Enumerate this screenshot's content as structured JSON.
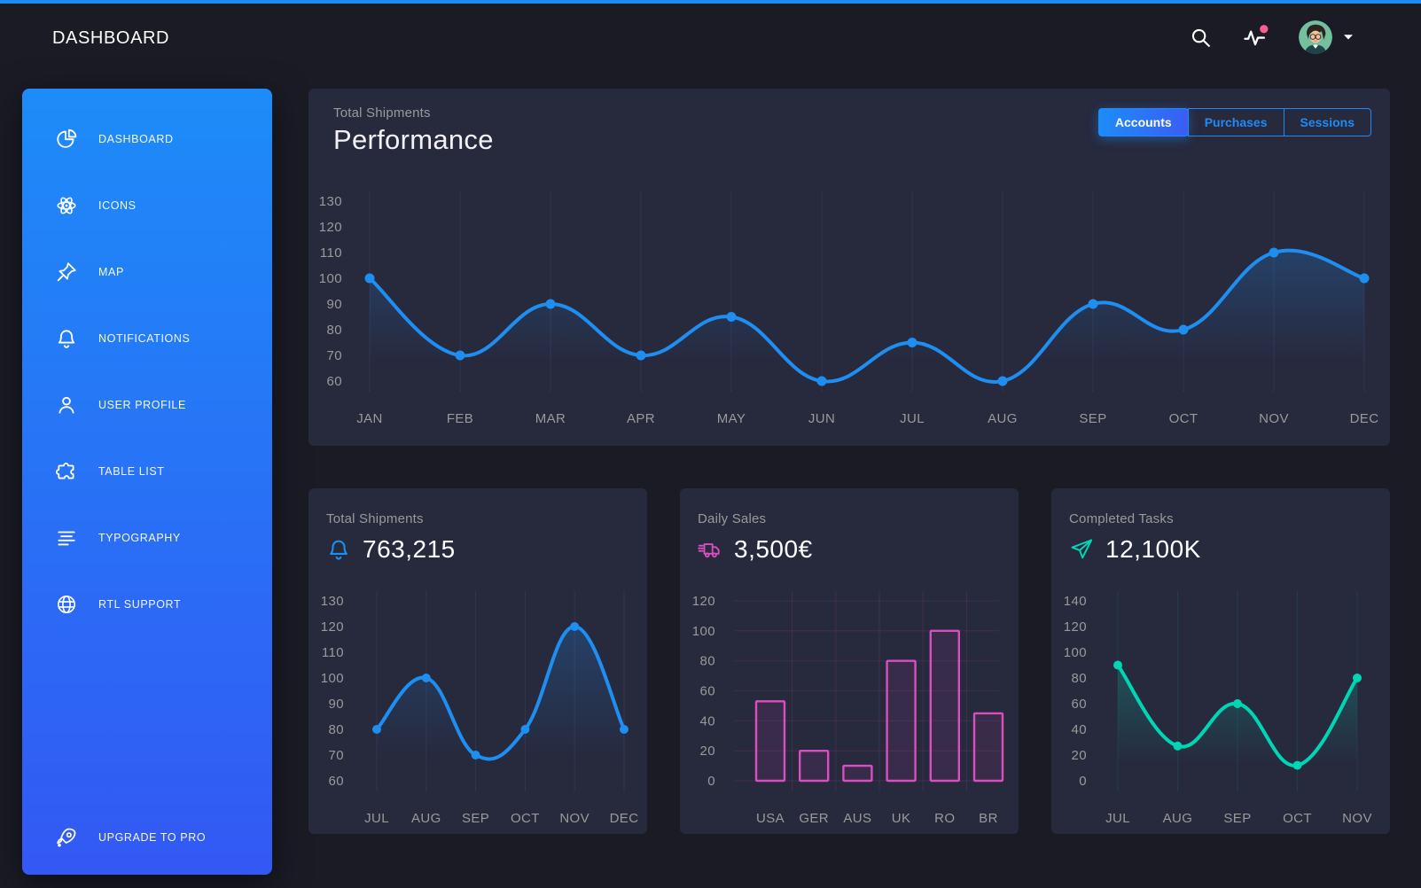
{
  "topbar": {
    "title": "DASHBOARD",
    "icons": [
      {
        "name": "search-icon"
      },
      {
        "name": "activity-icon",
        "has_notification_dot": true
      },
      {
        "name": "user-avatar"
      },
      {
        "name": "caret-down-icon"
      }
    ]
  },
  "sidebar": {
    "items": [
      {
        "icon": "pie-chart-icon",
        "label": "DASHBOARD"
      },
      {
        "icon": "atom-icon",
        "label": "ICONS"
      },
      {
        "icon": "pin-icon",
        "label": "MAP"
      },
      {
        "icon": "bell-icon",
        "label": "NOTIFICATIONS"
      },
      {
        "icon": "user-icon",
        "label": "USER PROFILE"
      },
      {
        "icon": "puzzle-icon",
        "label": "TABLE LIST"
      },
      {
        "icon": "align-left-icon",
        "label": "TYPOGRAPHY"
      },
      {
        "icon": "globe-icon",
        "label": "RTL SUPPORT"
      }
    ],
    "footer_item": {
      "icon": "rocket-icon",
      "label": "UPGRADE TO PRO"
    }
  },
  "main_card": {
    "subtitle": "Total Shipments",
    "title": "Performance",
    "tabs": [
      {
        "label": "Accounts",
        "active": true
      },
      {
        "label": "Purchases",
        "active": false
      },
      {
        "label": "Sessions",
        "active": false
      }
    ]
  },
  "stat_cards": [
    {
      "subtitle": "Total Shipments",
      "value": "763,215",
      "icon": "bell-icon",
      "icon_color": "#1f8ef1"
    },
    {
      "subtitle": "Daily Sales",
      "value": "3,500€",
      "icon": "delivery-truck-icon",
      "icon_color": "#d94ec0"
    },
    {
      "subtitle": "Completed Tasks",
      "value": "12,100K",
      "icon": "paper-plane-icon",
      "icon_color": "#00d6b4"
    }
  ],
  "chart_data": [
    {
      "type": "line",
      "name": "performance",
      "title": "Performance",
      "subtitle": "Total Shipments",
      "categories": [
        "JAN",
        "FEB",
        "MAR",
        "APR",
        "MAY",
        "JUN",
        "JUL",
        "AUG",
        "SEP",
        "OCT",
        "NOV",
        "DEC"
      ],
      "values": [
        100,
        70,
        90,
        70,
        85,
        60,
        75,
        60,
        90,
        80,
        110,
        100
      ],
      "yticks": [
        60,
        70,
        80,
        90,
        100,
        110,
        120,
        130
      ],
      "ylim": [
        50,
        135
      ],
      "xlabel": "",
      "ylabel": "",
      "grid": "vertical",
      "legend": "none",
      "color": "#1f8ef1"
    },
    {
      "type": "line",
      "name": "total-shipments",
      "title": "Total Shipments",
      "categories": [
        "JUL",
        "AUG",
        "SEP",
        "OCT",
        "NOV",
        "DEC"
      ],
      "values": [
        80,
        100,
        70,
        80,
        120,
        80
      ],
      "yticks": [
        60,
        70,
        80,
        90,
        100,
        110,
        120,
        130
      ],
      "ylim": [
        50,
        135
      ],
      "xlabel": "",
      "ylabel": "",
      "grid": "vertical",
      "legend": "none",
      "color": "#1f8ef1"
    },
    {
      "type": "bar",
      "name": "daily-sales",
      "title": "Daily Sales",
      "categories": [
        "USA",
        "GER",
        "AUS",
        "UK",
        "RO",
        "BR"
      ],
      "values": [
        53,
        20,
        10,
        80,
        100,
        45
      ],
      "yticks": [
        0,
        20,
        40,
        60,
        80,
        100,
        120
      ],
      "ylim": [
        0,
        132
      ],
      "xlabel": "",
      "ylabel": "",
      "grid": "both",
      "legend": "none",
      "color": "#d94ec0"
    },
    {
      "type": "line",
      "name": "completed-tasks",
      "title": "Completed Tasks",
      "categories": [
        "JUL",
        "AUG",
        "SEP",
        "OCT",
        "NOV"
      ],
      "values": [
        90,
        27,
        60,
        12,
        80
      ],
      "yticks": [
        0,
        20,
        40,
        60,
        80,
        100,
        120,
        140
      ],
      "ylim": [
        0,
        146
      ],
      "xlabel": "",
      "ylabel": "",
      "grid": "vertical",
      "legend": "none",
      "color": "#00d6b4"
    }
  ],
  "colors": {
    "top_border": "#1d8cf8",
    "sidebar_gradient_start": "#1d8cf8",
    "sidebar_gradient_end": "#3358f4",
    "body_bg": "#1b1b26",
    "card_bg": "#27293d",
    "text_muted": "#9a9a9a",
    "notification_dot": "#fd5d93",
    "chart_blue": "#1f8ef1",
    "chart_pink": "#d94ec0",
    "chart_green": "#00d6b4"
  }
}
